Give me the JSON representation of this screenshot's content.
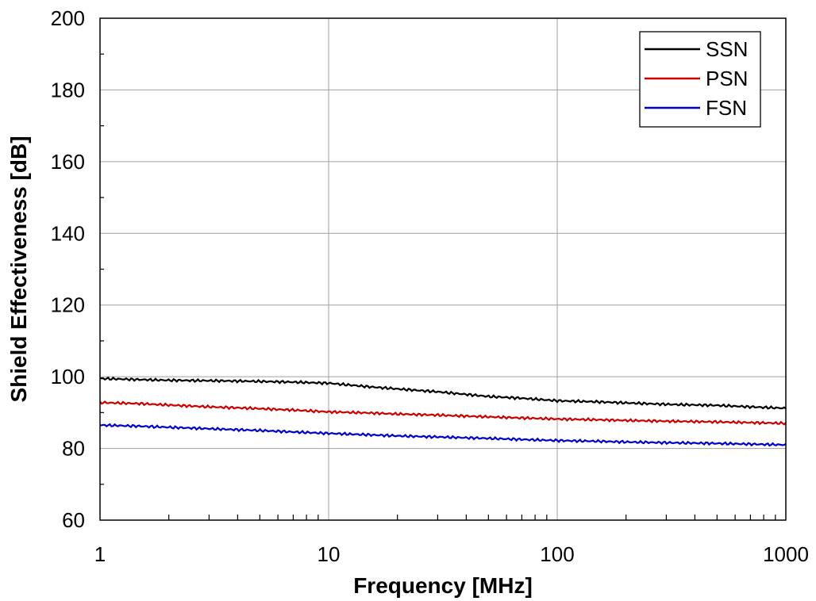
{
  "chart_data": {
    "type": "line",
    "title": "",
    "xlabel": "Frequency [MHz]",
    "ylabel": "Shield Effectiveness [dB]",
    "xscale": "log",
    "xlim": [
      1,
      1000
    ],
    "ylim": [
      60,
      200
    ],
    "x_ticks": [
      1,
      10,
      100,
      1000
    ],
    "x_tick_labels": [
      "1",
      "10",
      "100",
      "1000"
    ],
    "y_ticks": [
      60,
      80,
      100,
      120,
      140,
      160,
      180,
      200
    ],
    "y_tick_labels": [
      "60",
      "80",
      "100",
      "120",
      "140",
      "160",
      "180",
      "200"
    ],
    "grid": true,
    "legend_position": "top-right",
    "series": [
      {
        "name": "SSN",
        "color": "#000000",
        "x": [
          1,
          1.5,
          2,
          3,
          5,
          7,
          10,
          15,
          20,
          30,
          50,
          70,
          100,
          150,
          200,
          300,
          500,
          700,
          1000
        ],
        "y": [
          99.5,
          99.2,
          99.0,
          98.9,
          98.7,
          98.5,
          98.2,
          97.2,
          96.6,
          95.8,
          94.5,
          94.0,
          93.3,
          93.0,
          92.7,
          92.3,
          92.0,
          91.6,
          91.2
        ]
      },
      {
        "name": "PSN",
        "color": "#cc0000",
        "x": [
          1,
          1.5,
          2,
          3,
          5,
          7,
          10,
          15,
          20,
          30,
          50,
          70,
          100,
          150,
          200,
          300,
          500,
          700,
          1000
        ],
        "y": [
          92.8,
          92.5,
          92.1,
          91.6,
          91.1,
          90.7,
          90.2,
          89.9,
          89.6,
          89.3,
          88.8,
          88.5,
          88.2,
          88.0,
          87.8,
          87.6,
          87.4,
          87.2,
          87.0
        ]
      },
      {
        "name": "FSN",
        "color": "#0000cc",
        "x": [
          1,
          1.5,
          2,
          3,
          5,
          7,
          10,
          15,
          20,
          30,
          50,
          70,
          100,
          150,
          200,
          300,
          500,
          700,
          1000
        ],
        "y": [
          86.5,
          86.2,
          85.9,
          85.5,
          85.0,
          84.6,
          84.2,
          83.8,
          83.5,
          83.2,
          82.8,
          82.5,
          82.2,
          82.0,
          81.8,
          81.6,
          81.4,
          81.2,
          81.0
        ]
      }
    ]
  }
}
